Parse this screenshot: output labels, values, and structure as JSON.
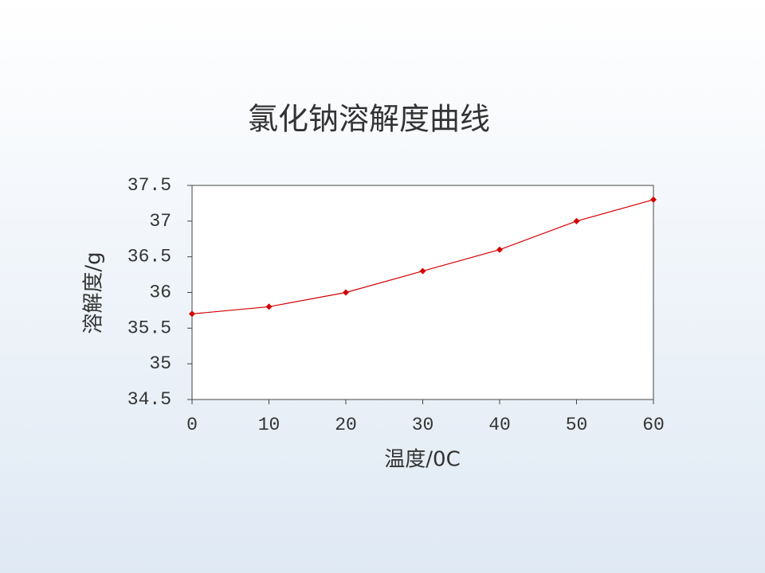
{
  "chart_data": {
    "type": "line",
    "title": "氯化钠溶解度曲线",
    "x_label": "温度/0C",
    "y_label": "溶解度/g",
    "x": [
      0,
      10,
      20,
      30,
      40,
      50,
      60
    ],
    "values": [
      35.7,
      35.8,
      36.0,
      36.3,
      36.6,
      37.0,
      37.3
    ],
    "color": "#d40000",
    "xlim": [
      0,
      60
    ],
    "xticks": [
      0,
      10,
      20,
      30,
      40,
      50,
      60
    ],
    "ylim": [
      34.5,
      37.5
    ],
    "yticks": [
      34.5,
      35,
      35.5,
      36,
      36.5,
      37,
      37.5
    ],
    "grid": false
  }
}
